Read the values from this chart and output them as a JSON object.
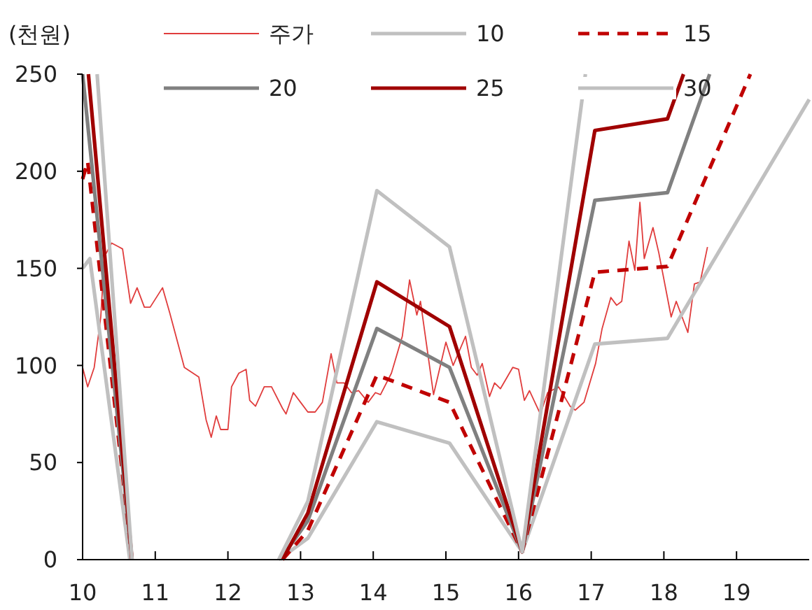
{
  "chart_data": {
    "type": "line",
    "ylabel": "(천원)",
    "xlim": [
      10,
      20
    ],
    "xticks": [
      10,
      11,
      12,
      13,
      14,
      15,
      16,
      17,
      18,
      19
    ],
    "ylim": [
      0,
      250
    ],
    "yticks": [
      0,
      50,
      100,
      150,
      200,
      250
    ],
    "grid": false,
    "legend": "top",
    "marker": "none",
    "series": [
      {
        "name": "주가",
        "color": "#e03c3c",
        "x": [
          10.0,
          10.07,
          10.16,
          10.25,
          10.3,
          10.4,
          10.5,
          10.55,
          10.66,
          10.75,
          10.85,
          10.93,
          11.1,
          11.2,
          11.4,
          11.6,
          11.7,
          11.77,
          11.84,
          11.9,
          12.0,
          12.05,
          12.15,
          12.25,
          12.3,
          12.38,
          12.5,
          12.6,
          12.75,
          12.8,
          12.9,
          13.0,
          13.1,
          13.2,
          13.3,
          13.42,
          13.5,
          13.6,
          13.7,
          13.8,
          13.93,
          14.03,
          14.1,
          14.25,
          14.4,
          14.5,
          14.6,
          14.65,
          14.83,
          15.0,
          15.1,
          15.27,
          15.35,
          15.43,
          15.5,
          15.6,
          15.67,
          15.75,
          15.92,
          16.0,
          16.08,
          16.15,
          16.3,
          16.4,
          16.55,
          16.71,
          16.78,
          16.9,
          17.06,
          17.15,
          17.27,
          17.35,
          17.42,
          17.52,
          17.6,
          17.67,
          17.73,
          17.85,
          17.93,
          18.1,
          18.17,
          18.33,
          18.42,
          18.5,
          18.6
        ],
        "values": [
          99,
          89,
          99,
          125,
          156,
          163,
          161,
          160,
          132,
          140,
          130,
          130,
          140,
          127,
          99,
          94,
          72,
          63,
          74,
          67,
          67,
          89,
          96,
          98,
          82,
          79,
          89,
          89,
          78,
          75,
          86,
          81,
          76,
          76,
          81,
          106,
          91,
          91,
          86,
          87,
          81,
          86,
          85,
          96,
          115,
          144,
          126,
          133,
          85,
          112,
          100,
          115,
          99,
          95,
          101,
          84,
          91,
          88,
          99,
          98,
          82,
          87,
          75,
          86,
          89,
          79,
          77,
          81,
          101,
          119,
          135,
          131,
          133,
          164,
          149,
          184,
          155,
          171,
          158,
          125,
          133,
          117,
          142,
          143,
          161
        ]
      },
      {
        "name": "10",
        "color": "#c0c0c0",
        "x": [
          10.0,
          10.1,
          10.65,
          11.5,
          12.7,
          13.1,
          14.05,
          15.05,
          16.05,
          17.05,
          18.05,
          20.0
        ],
        "values": [
          150,
          155,
          0,
          null,
          0,
          11,
          71,
          60,
          4,
          111,
          114,
          237
        ]
      },
      {
        "name": "15",
        "color": "#c00000",
        "line_style": "dashed",
        "x": [
          10.0,
          10.07,
          10.68,
          11.5,
          12.75,
          13.1,
          14.05,
          15.05,
          16.05,
          17.05,
          18.05,
          19.19
        ],
        "values": [
          196,
          205,
          0,
          null,
          0,
          15,
          95,
          81,
          4,
          148,
          151,
          250
        ]
      },
      {
        "name": "20",
        "color": "#808080",
        "x": [
          10.0,
          10.68,
          11.5,
          12.72,
          13.1,
          14.05,
          15.05,
          16.05,
          17.05,
          18.05,
          18.63
        ],
        "values": [
          250,
          0,
          null,
          0,
          20,
          119,
          99,
          4,
          185,
          189,
          250
        ]
      },
      {
        "name": "25",
        "color": "#a00000",
        "x": [
          10.08,
          10.68,
          11.5,
          12.75,
          13.1,
          14.05,
          15.05,
          16.05,
          17.05,
          18.05,
          18.27
        ],
        "values": [
          250,
          0,
          null,
          0,
          24,
          143,
          120,
          4,
          221,
          227,
          250
        ]
      },
      {
        "name": "30",
        "color": "#c0c0c0",
        "x": [
          10.2,
          10.68,
          11.5,
          12.7,
          13.1,
          14.05,
          15.05,
          16.05,
          16.92
        ],
        "values": [
          250,
          0,
          null,
          0,
          30,
          190,
          161,
          4,
          250
        ]
      }
    ]
  }
}
